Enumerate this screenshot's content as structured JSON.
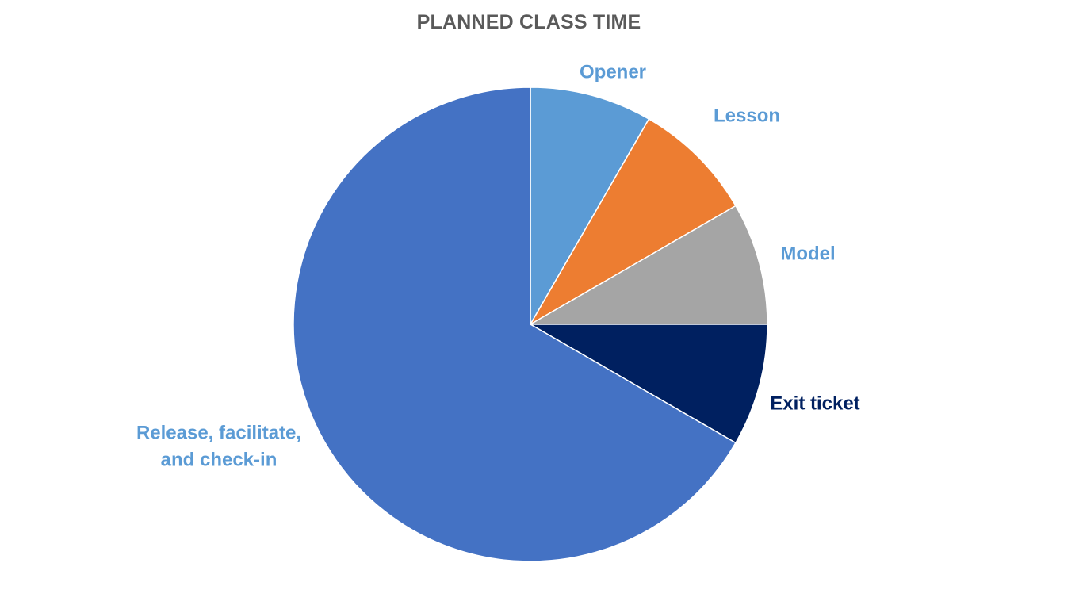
{
  "chart_data": {
    "type": "pie",
    "title": "PLANNED CLASS TIME",
    "categories": [
      "Opener",
      "Lesson",
      "Model",
      "Exit ticket",
      "Release, facilitate, and check-in"
    ],
    "values": [
      5,
      5,
      5,
      5,
      40
    ],
    "colors": [
      "#5B9BD5",
      "#ED7D31",
      "#A5A5A5",
      "#002060",
      "#4472C4"
    ],
    "label_colors": [
      "#5B9BD5",
      "#5B9BD5",
      "#5B9BD5",
      "#002060",
      "#5B9BD5"
    ],
    "label_lines": [
      [
        "Opener"
      ],
      [
        "Lesson"
      ],
      [
        "Model"
      ],
      [
        "Exit ticket"
      ],
      [
        "Release, facilitate,",
        "and check-in"
      ]
    ],
    "start_angle": "12 o'clock",
    "direction": "clockwise",
    "legend": "none"
  }
}
